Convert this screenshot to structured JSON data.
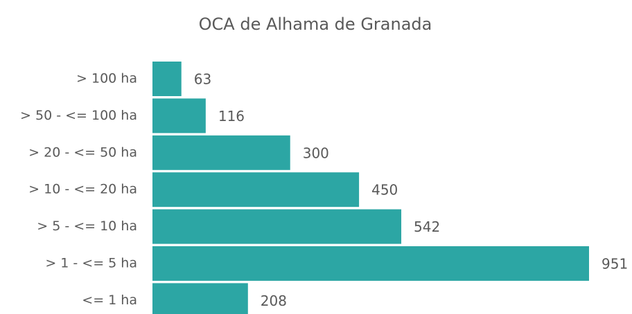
{
  "chart_data": {
    "type": "bar",
    "orientation": "horizontal",
    "title": "OCA de Alhama de Granada",
    "categories": [
      "> 100 ha",
      "> 50 - <= 100 ha",
      "> 20 - <= 50 ha",
      "> 10 - <= 20 ha",
      "> 5 - <= 10 ha",
      "> 1 - <= 5 ha",
      "<= 1 ha"
    ],
    "values": [
      63,
      116,
      300,
      450,
      542,
      951,
      208
    ],
    "color": "#2ca6a4"
  }
}
